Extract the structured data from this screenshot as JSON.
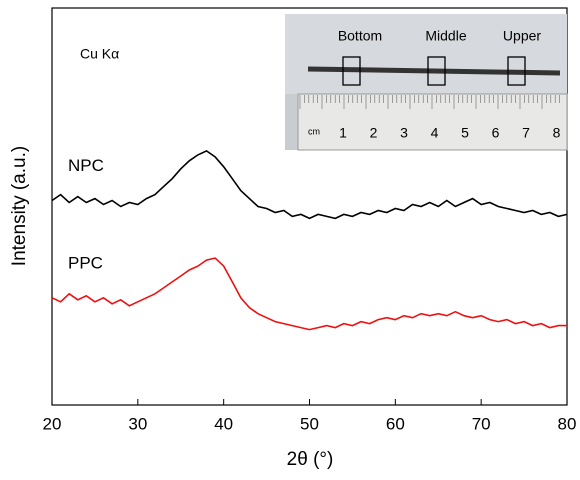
{
  "chart_data": {
    "type": "line",
    "xlabel": "2θ (°)",
    "ylabel": "Intensity (a.u.)",
    "xlim": [
      20,
      80
    ],
    "xticks": [
      20,
      30,
      40,
      50,
      60,
      70,
      80
    ],
    "ylim": [
      0,
      100
    ],
    "x": [
      20,
      21,
      22,
      23,
      24,
      25,
      26,
      27,
      28,
      29,
      30,
      31,
      32,
      33,
      34,
      35,
      36,
      37,
      38,
      39,
      40,
      41,
      42,
      43,
      44,
      45,
      46,
      47,
      48,
      49,
      50,
      51,
      52,
      53,
      54,
      55,
      56,
      57,
      58,
      59,
      60,
      61,
      62,
      63,
      64,
      65,
      66,
      67,
      68,
      69,
      70,
      71,
      72,
      73,
      74,
      75,
      76,
      77,
      78,
      79,
      80
    ],
    "series": [
      {
        "name": "NPC",
        "color": "#000000",
        "values": [
          51.5,
          53,
          51,
          52.5,
          51,
          52,
          50.5,
          51.5,
          50,
          51,
          50.5,
          52,
          53,
          55,
          57,
          59.5,
          61.5,
          63,
          64,
          62.5,
          60,
          57,
          54,
          52,
          50,
          49.5,
          48.5,
          49,
          47.5,
          48,
          47,
          48,
          47.5,
          47,
          48,
          47.5,
          48.5,
          48,
          49,
          48.5,
          49.5,
          49,
          50.5,
          50,
          51,
          50,
          51.5,
          50,
          51,
          52,
          50.5,
          51,
          50,
          49.5,
          49,
          48.5,
          49,
          48,
          48.5,
          47.5,
          48
        ]
      },
      {
        "name": "PPC",
        "color": "#ee1111",
        "values": [
          27,
          26,
          28,
          26.5,
          27.5,
          26,
          27,
          25.5,
          26.5,
          25,
          26,
          27,
          28,
          29.5,
          31,
          32.5,
          34,
          35,
          36.5,
          37,
          35,
          31,
          27,
          24.5,
          23,
          22,
          21,
          20.5,
          20,
          19.5,
          19,
          19.5,
          20,
          19.5,
          20.5,
          20,
          21,
          20.5,
          21.5,
          22,
          21.5,
          22.5,
          22,
          23,
          22.5,
          23,
          22.5,
          23.5,
          22.5,
          22,
          22.5,
          21.5,
          21,
          21.5,
          20.5,
          21,
          20,
          20.5,
          19.5,
          20,
          20
        ]
      }
    ],
    "annotation": "Cu Kα",
    "inset": {
      "labels": [
        "Bottom",
        "Middle",
        "Upper"
      ],
      "ruler_unit": "cm",
      "ruler_numbers": [
        "1",
        "2",
        "3",
        "4",
        "5",
        "6",
        "7",
        "8"
      ]
    }
  }
}
